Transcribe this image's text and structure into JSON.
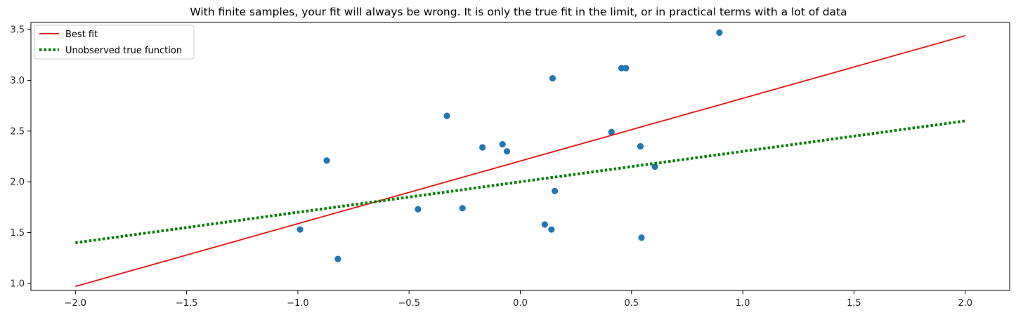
{
  "chart_data": {
    "type": "scatter",
    "title": "With finite samples, your fit will always be wrong. It is only the true fit in the limit, or in practical terms with a lot of data",
    "xlabel": "",
    "ylabel": "",
    "xlim": [
      -2.2,
      2.2
    ],
    "ylim": [
      0.93,
      3.57
    ],
    "x_ticks": [
      -2.0,
      -1.5,
      -1.0,
      -0.5,
      0.0,
      0.5,
      1.0,
      1.5,
      2.0
    ],
    "x_tick_labels": [
      "−2.0",
      "−1.5",
      "−1.0",
      "−0.5",
      "0.0",
      "0.5",
      "1.0",
      "1.5",
      "2.0"
    ],
    "y_ticks": [
      1.0,
      1.5,
      2.0,
      2.5,
      3.0,
      3.5
    ],
    "y_tick_labels": [
      "1.0",
      "1.5",
      "2.0",
      "2.5",
      "3.0",
      "3.5"
    ],
    "grid": false,
    "legend_position": "top-left",
    "points": {
      "color": "#1f77b4",
      "x": [
        -0.99,
        -0.87,
        -0.82,
        -0.46,
        -0.33,
        -0.26,
        -0.17,
        -0.08,
        -0.06,
        0.11,
        0.14,
        0.145,
        0.155,
        0.41,
        0.455,
        0.475,
        0.54,
        0.545,
        0.605,
        0.895
      ],
      "y": [
        1.53,
        2.21,
        1.24,
        1.73,
        2.65,
        1.74,
        2.34,
        2.37,
        2.3,
        1.58,
        1.53,
        3.02,
        1.91,
        2.49,
        3.12,
        3.12,
        2.35,
        1.45,
        2.15,
        3.47
      ]
    },
    "series": [
      {
        "name": "Best fit",
        "color": "#e8130e",
        "style": "solid",
        "x": [
          -2.0,
          2.0
        ],
        "y": [
          0.97,
          3.44
        ]
      },
      {
        "name": "Unobserved true function",
        "color": "#008000",
        "style": "dotted",
        "x": [
          -2.0,
          2.0
        ],
        "y": [
          1.4,
          2.6
        ]
      }
    ]
  }
}
